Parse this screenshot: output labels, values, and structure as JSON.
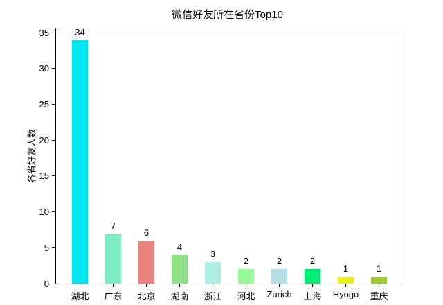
{
  "chart_data": {
    "type": "bar",
    "title": "微信好友所在省份Top10",
    "xlabel": "",
    "ylabel": "各省好友人数",
    "categories": [
      "湖北",
      "广东",
      "北京",
      "湖南",
      "浙江",
      "河北",
      "Zurich",
      "上海",
      "Hyogo",
      "重庆"
    ],
    "values": [
      34,
      7,
      6,
      4,
      3,
      2,
      2,
      2,
      1,
      1
    ],
    "bar_colors": [
      "#00E5EE",
      "#7DEEC4",
      "#E8837F",
      "#90E287",
      "#AFEEE2",
      "#99F898",
      "#B3DFE3",
      "#00EE76",
      "#F0F01E",
      "#A0C832"
    ],
    "yticks": [
      0,
      5,
      10,
      15,
      20,
      25,
      30,
      35
    ],
    "ylim": [
      0,
      35.6
    ],
    "grid": false,
    "legend": null,
    "value_labels_shown": true,
    "axis_color": "#000000",
    "background_color": "#FFFFFF"
  }
}
